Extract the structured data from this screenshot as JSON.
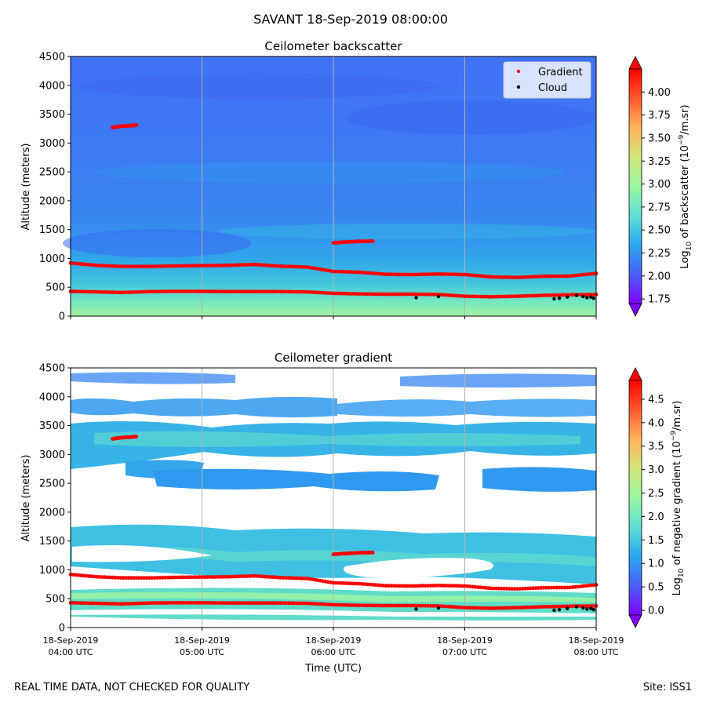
{
  "figure": {
    "suptitle": "SAVANT 18-Sep-2019 08:00:00",
    "footer_left": "REAL TIME DATA, NOT CHECKED FOR QUALITY",
    "footer_right": "Site: ISS1"
  },
  "colors": {
    "gradient_marker": "#ff0000",
    "cloud_marker": "#000000",
    "colormap": [
      "#8000ff",
      "#4a5ffb",
      "#2aa7ee",
      "#5fe0d2",
      "#99f7a0",
      "#d2e67a",
      "#ffb35c",
      "#ff5a2e",
      "#ff0000"
    ]
  },
  "chart_data": [
    {
      "type": "heatmap",
      "title": "Ceilometer backscatter",
      "ylabel": "Altitude (meters)",
      "xlabel": "",
      "ylim": [
        0,
        4500
      ],
      "yticks": [
        0,
        500,
        1000,
        1500,
        2000,
        2500,
        3000,
        3500,
        4000,
        4500
      ],
      "xlim_hours": [
        4,
        8
      ],
      "xticks_hours": [
        4,
        5,
        6,
        7,
        8
      ],
      "colorbar": {
        "label": "Log10 of backscatter (10^-9/m.sr)",
        "label_main": "Log",
        "label_sub": "10",
        "label_mid": " of backscatter (10",
        "label_sup": "−9",
        "label_end": "/m.sr)",
        "range": [
          1.7,
          4.25
        ],
        "ticks": [
          "1.75",
          "2.00",
          "2.25",
          "2.50",
          "2.75",
          "3.00",
          "3.25",
          "3.50",
          "3.75",
          "4.00"
        ]
      },
      "legend": {
        "position": "top-right",
        "entries": [
          {
            "label": "Gradient",
            "color": "#ff0000"
          },
          {
            "label": "Cloud",
            "color": "#000000"
          }
        ]
      },
      "series": [
        {
          "name": "Gradient (upper layer)",
          "x_hours": [
            4.0,
            4.2,
            4.4,
            4.6,
            4.8,
            5.0,
            5.2,
            5.4,
            5.6,
            5.8,
            6.0,
            6.2,
            6.4,
            6.6,
            6.8,
            7.0,
            7.2,
            7.4,
            7.6,
            7.8,
            8.0
          ],
          "values": [
            920,
            880,
            860,
            860,
            870,
            875,
            880,
            895,
            865,
            850,
            775,
            760,
            725,
            720,
            730,
            720,
            680,
            670,
            690,
            695,
            740
          ]
        },
        {
          "name": "Gradient (lower layer)",
          "x_hours": [
            4.0,
            4.2,
            4.4,
            4.6,
            4.8,
            5.0,
            5.2,
            5.4,
            5.6,
            5.8,
            6.0,
            6.2,
            6.4,
            6.6,
            6.8,
            7.0,
            7.2,
            7.4,
            7.6,
            7.8,
            8.0
          ],
          "values": [
            430,
            420,
            410,
            425,
            430,
            430,
            425,
            425,
            425,
            420,
            395,
            385,
            380,
            380,
            375,
            345,
            335,
            345,
            360,
            370,
            375
          ]
        },
        {
          "name": "Gradient (elevated layer 1)",
          "x_hours": [
            4.32,
            4.38,
            4.45,
            4.5
          ],
          "values": [
            3270,
            3290,
            3300,
            3310
          ]
        },
        {
          "name": "Gradient (elevated layer 2)",
          "x_hours": [
            6.0,
            6.1,
            6.2,
            6.3
          ],
          "values": [
            1270,
            1285,
            1295,
            1300
          ]
        }
      ],
      "cloud_points": {
        "x_hours": [
          6.63,
          6.8,
          7.68,
          7.72,
          7.78,
          7.85,
          7.9,
          7.93,
          7.96,
          7.98
        ],
        "values": [
          320,
          340,
          300,
          310,
          330,
          360,
          340,
          320,
          330,
          310
        ]
      }
    },
    {
      "type": "heatmap",
      "title": "Ceilometer gradient",
      "ylabel": "Altitude (meters)",
      "xlabel": "Time (UTC)",
      "ylim": [
        0,
        4500
      ],
      "yticks": [
        0,
        500,
        1000,
        1500,
        2000,
        2500,
        3000,
        3500,
        4000,
        4500
      ],
      "xlim_hours": [
        4,
        8
      ],
      "xticks_hours": [
        4,
        5,
        6,
        7,
        8
      ],
      "xtick_labels": [
        {
          "line1": "18-Sep-2019",
          "line2": "04:00 UTC"
        },
        {
          "line1": "18-Sep-2019",
          "line2": "05:00 UTC"
        },
        {
          "line1": "18-Sep-2019",
          "line2": "06:00 UTC"
        },
        {
          "line1": "18-Sep-2019",
          "line2": "07:00 UTC"
        },
        {
          "line1": "18-Sep-2019",
          "line2": "08:00 UTC"
        }
      ],
      "colorbar": {
        "label": "Log10 of negative gradient (10^-9/m.sr)",
        "label_main": "Log",
        "label_sub": "10",
        "label_mid": " of negative gradient (10",
        "label_sup": "−9",
        "label_end": "/m.sr)",
        "range": [
          -0.1,
          4.9
        ],
        "ticks": [
          "0.0",
          "0.5",
          "1.0",
          "1.5",
          "2.0",
          "2.5",
          "3.0",
          "3.5",
          "4.0",
          "4.5"
        ]
      },
      "series": [
        {
          "name": "Gradient (upper layer)",
          "x_hours": [
            4.0,
            4.2,
            4.4,
            4.6,
            4.8,
            5.0,
            5.2,
            5.4,
            5.6,
            5.8,
            6.0,
            6.2,
            6.4,
            6.6,
            6.8,
            7.0,
            7.2,
            7.4,
            7.6,
            7.8,
            8.0
          ],
          "values": [
            920,
            880,
            860,
            860,
            870,
            875,
            880,
            895,
            865,
            850,
            775,
            760,
            725,
            720,
            730,
            720,
            680,
            670,
            690,
            695,
            740
          ]
        },
        {
          "name": "Gradient (lower layer)",
          "x_hours": [
            4.0,
            4.2,
            4.4,
            4.6,
            4.8,
            5.0,
            5.2,
            5.4,
            5.6,
            5.8,
            6.0,
            6.2,
            6.4,
            6.6,
            6.8,
            7.0,
            7.2,
            7.4,
            7.6,
            7.8,
            8.0
          ],
          "values": [
            430,
            420,
            410,
            425,
            430,
            430,
            425,
            425,
            425,
            420,
            395,
            385,
            380,
            380,
            375,
            345,
            335,
            345,
            360,
            370,
            375
          ]
        },
        {
          "name": "Gradient (elevated layer 1)",
          "x_hours": [
            4.32,
            4.38,
            4.45,
            4.5
          ],
          "values": [
            3270,
            3290,
            3300,
            3310
          ]
        },
        {
          "name": "Gradient (elevated layer 2)",
          "x_hours": [
            6.0,
            6.1,
            6.2,
            6.3
          ],
          "values": [
            1270,
            1285,
            1295,
            1300
          ]
        }
      ],
      "cloud_points": {
        "x_hours": [
          6.63,
          6.8,
          7.68,
          7.72,
          7.78,
          7.85,
          7.9,
          7.93,
          7.96,
          7.98
        ],
        "values": [
          320,
          340,
          300,
          310,
          330,
          360,
          340,
          320,
          330,
          310
        ]
      }
    }
  ]
}
